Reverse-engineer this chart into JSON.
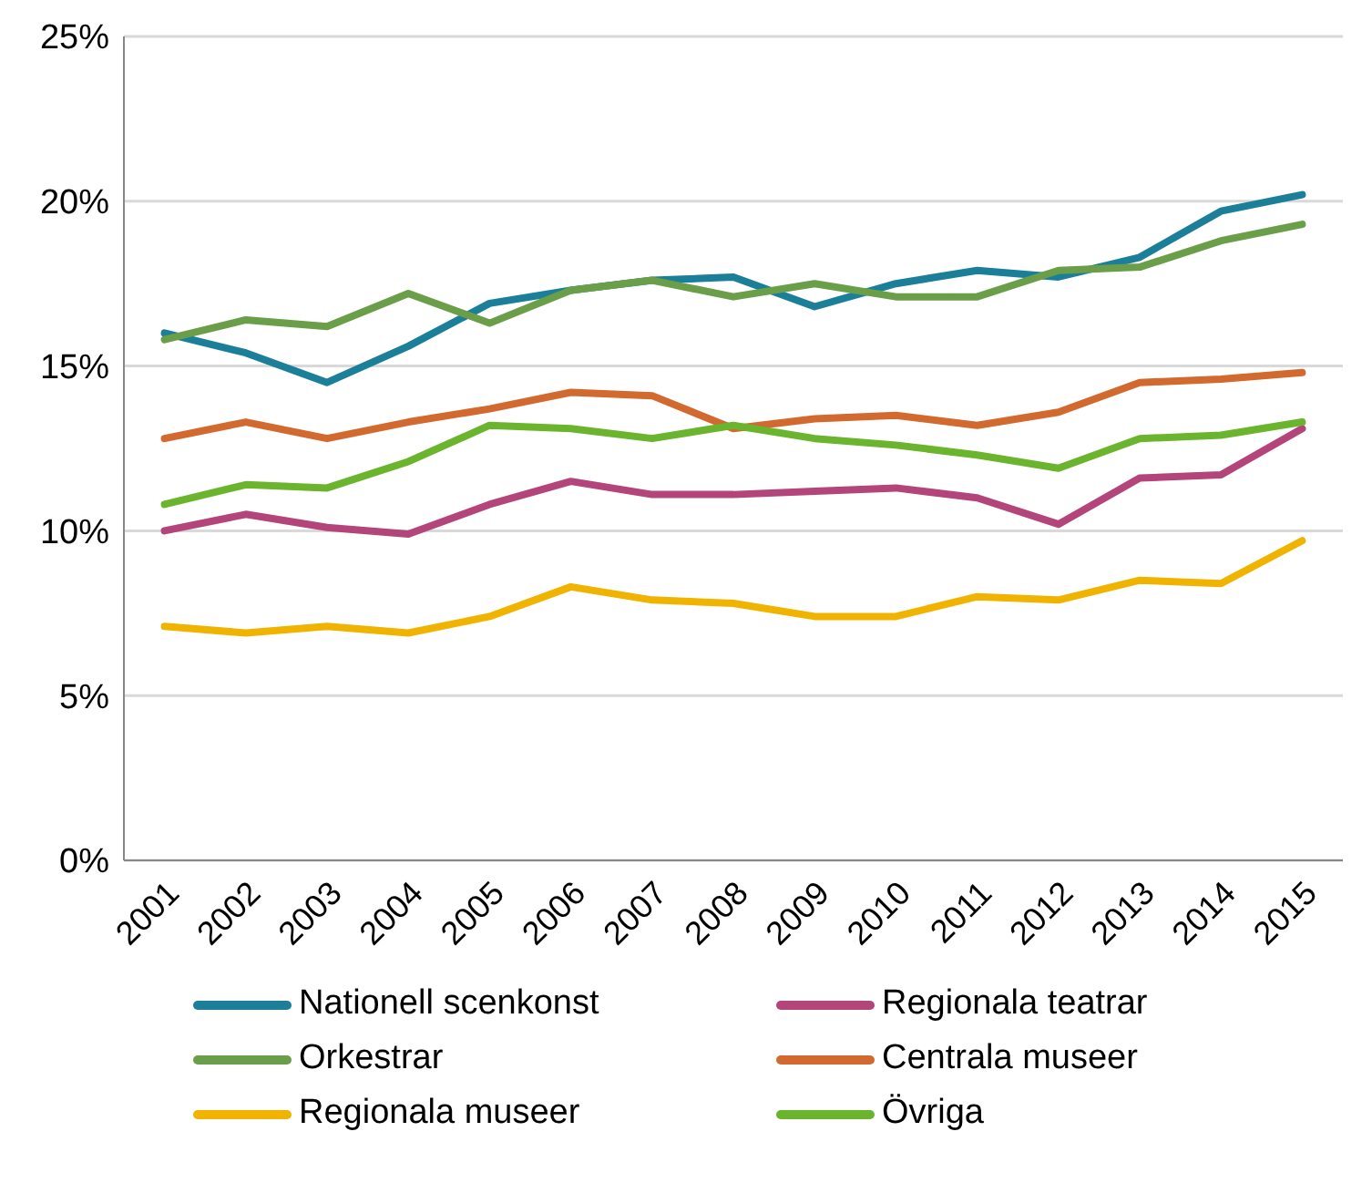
{
  "chart_data": {
    "type": "line",
    "categories": [
      "2001",
      "2002",
      "2003",
      "2004",
      "2005",
      "2006",
      "2007",
      "2008",
      "2009",
      "2010",
      "2011",
      "2012",
      "2013",
      "2014",
      "2015"
    ],
    "series": [
      {
        "name": "Nationell scenkonst",
        "color": "#1b7f99",
        "values": [
          16.0,
          15.4,
          14.5,
          15.6,
          16.9,
          17.3,
          17.6,
          17.7,
          16.8,
          17.5,
          17.9,
          17.7,
          18.3,
          19.7,
          20.2
        ]
      },
      {
        "name": "Regionala teatrar",
        "color": "#b4457b",
        "values": [
          10.0,
          10.5,
          10.1,
          9.9,
          10.8,
          11.5,
          11.1,
          11.1,
          11.2,
          11.3,
          11.0,
          10.2,
          11.6,
          11.7,
          13.1
        ]
      },
      {
        "name": "Orkestrar",
        "color": "#6a9e48",
        "values": [
          15.8,
          16.4,
          16.2,
          17.2,
          16.3,
          17.3,
          17.6,
          17.1,
          17.5,
          17.1,
          17.1,
          17.9,
          18.0,
          18.8,
          19.3
        ]
      },
      {
        "name": "Centrala museer",
        "color": "#d2692f",
        "values": [
          12.8,
          13.3,
          12.8,
          13.3,
          13.7,
          14.2,
          14.1,
          13.1,
          13.4,
          13.5,
          13.2,
          13.6,
          14.5,
          14.6,
          14.8
        ]
      },
      {
        "name": "Regionala museer",
        "color": "#f0b400",
        "values": [
          7.1,
          6.9,
          7.1,
          6.9,
          7.4,
          8.3,
          7.9,
          7.8,
          7.4,
          7.4,
          8.0,
          7.9,
          8.5,
          8.4,
          9.7
        ]
      },
      {
        "name": "Övriga",
        "color": "#6ab42e",
        "values": [
          10.8,
          11.4,
          11.3,
          12.1,
          13.2,
          13.1,
          12.8,
          13.2,
          12.8,
          12.6,
          12.3,
          11.9,
          12.8,
          12.9,
          13.3
        ]
      }
    ],
    "ylim": [
      0,
      25
    ],
    "yticks": [
      {
        "value": 0,
        "label": "0%"
      },
      {
        "value": 5,
        "label": "5%"
      },
      {
        "value": 10,
        "label": "10%"
      },
      {
        "value": 15,
        "label": "15%"
      },
      {
        "value": 20,
        "label": "20%"
      },
      {
        "value": 25,
        "label": "25%"
      }
    ],
    "grid": "y",
    "legend": "bottom",
    "marker": "none",
    "line_style": "solid"
  }
}
